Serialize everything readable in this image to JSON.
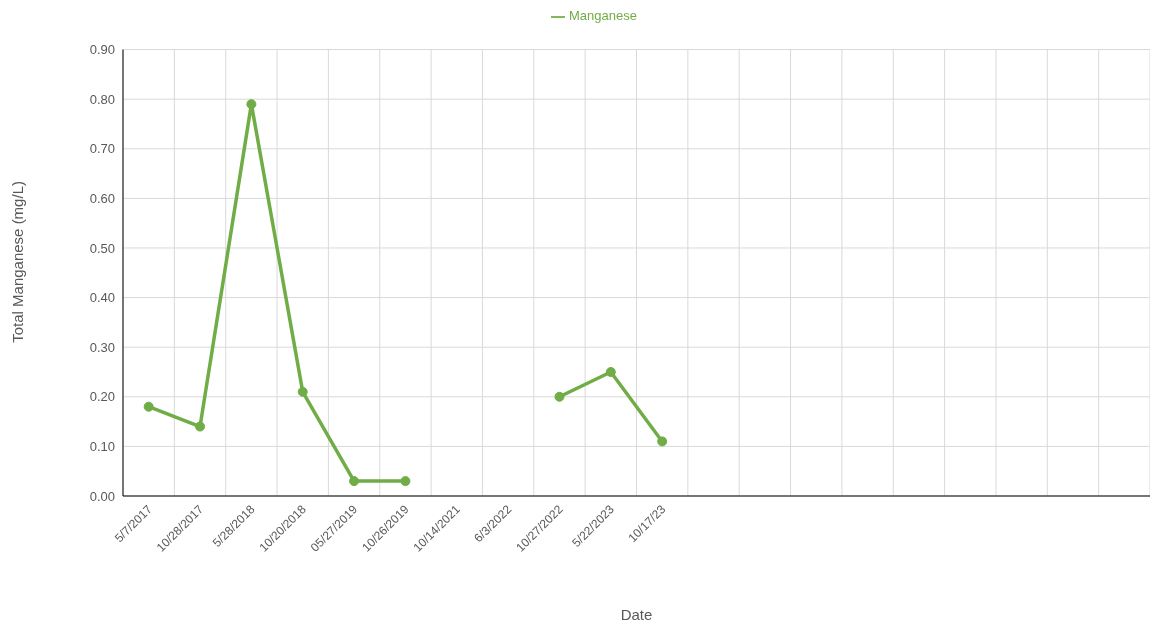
{
  "chart_data": {
    "type": "line",
    "xlabel": "Date",
    "ylabel": "Total Manganese (mg/L)",
    "categories": [
      "5/7/2017",
      "10/28/2017",
      "5/28/2018",
      "10/20/2018",
      "05/27/2019",
      "10/26/2019",
      "10/14/2021",
      "6/3/2022",
      "10/27/2022",
      "5/22/2023",
      "10/17/23",
      null,
      null,
      null,
      null,
      null,
      null,
      null,
      null,
      null
    ],
    "series": [
      {
        "name": "Manganese",
        "color": "#70ad47",
        "values": [
          0.18,
          0.14,
          0.79,
          0.21,
          0.03,
          0.03,
          null,
          null,
          0.2,
          0.25,
          0.11,
          null,
          null,
          null,
          null,
          null,
          null,
          null,
          null,
          null
        ]
      }
    ],
    "ylim": [
      0,
      0.9
    ],
    "yticks": [
      {
        "value": 0,
        "label": "0.00"
      },
      {
        "value": 0.1,
        "label": "0.10"
      },
      {
        "value": 0.2,
        "label": "0.20"
      },
      {
        "value": 0.3,
        "label": "0.30"
      },
      {
        "value": 0.4,
        "label": "0.40"
      },
      {
        "value": 0.5,
        "label": "0.50"
      },
      {
        "value": 0.6,
        "label": "0.60"
      },
      {
        "value": 0.7,
        "label": "0.70"
      },
      {
        "value": 0.8,
        "label": "0.80"
      },
      {
        "value": 0.9,
        "label": "0.90"
      }
    ],
    "grid": true,
    "legend": "top",
    "marker": "circle",
    "line_style": "solid"
  }
}
